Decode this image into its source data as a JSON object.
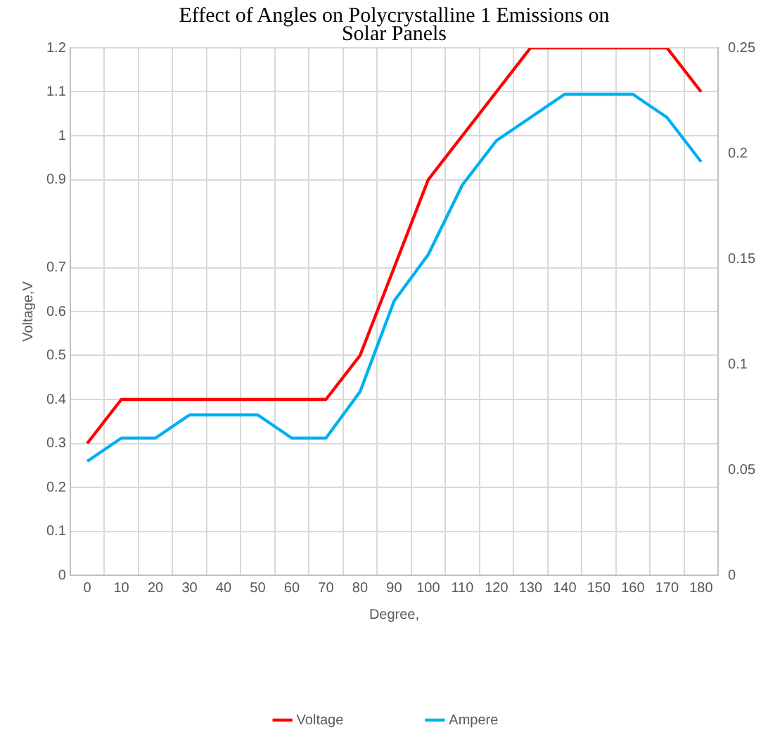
{
  "chart_data": {
    "type": "line",
    "title": "Effect of Angles on Polycrystalline 1 Emissions on Solar Panels",
    "xlabel": "Degree,",
    "ylabel": "Voltage,V",
    "categories": [
      "0",
      "10",
      "20",
      "30",
      "40",
      "50",
      "60",
      "70",
      "80",
      "90",
      "100",
      "110",
      "120",
      "130",
      "140",
      "150",
      "160",
      "170",
      "180"
    ],
    "series": [
      {
        "name": "Voltage",
        "color": "#ff0000",
        "values": [
          0.3,
          0.4,
          0.4,
          0.4,
          0.4,
          0.4,
          0.4,
          0.4,
          0.5,
          0.7,
          0.9,
          1.0,
          1.1,
          1.2,
          1.2,
          1.2,
          1.2,
          1.2,
          1.1
        ]
      },
      {
        "name": "Ampere",
        "color": "#00b0f0",
        "axis": "y2",
        "values": [
          0.054,
          0.065,
          0.065,
          0.076,
          0.076,
          0.076,
          0.065,
          0.065,
          0.087,
          0.13,
          0.152,
          0.185,
          0.206,
          0.217,
          0.228,
          0.228,
          0.228,
          0.217,
          0.196
        ]
      }
    ],
    "ylim": [
      0,
      1.2
    ],
    "yticks": [
      0,
      0.1,
      0.2,
      0.3,
      0.4,
      0.5,
      0.6,
      0.7,
      0.9,
      1,
      1.1,
      1.2
    ],
    "y2lim": [
      0,
      0.25
    ],
    "y2ticks": [
      0,
      0.05,
      0.1,
      0.15,
      0.2,
      0.25
    ],
    "grid": true,
    "legend": "bottom",
    "marker": "none",
    "line_style": "solid"
  }
}
